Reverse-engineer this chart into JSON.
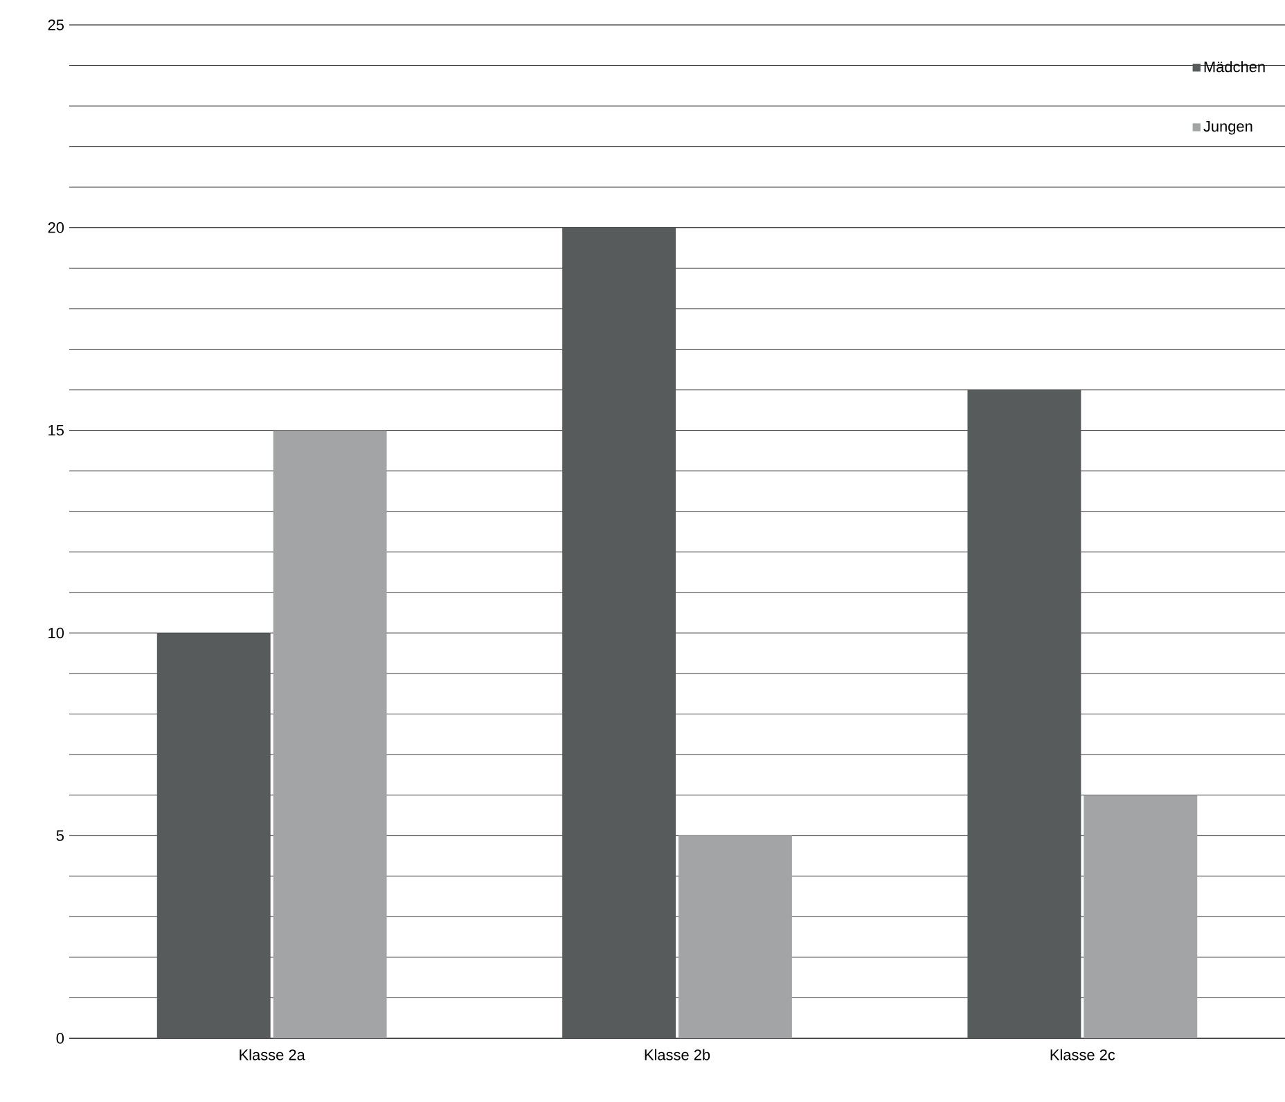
{
  "chart_data": {
    "type": "bar",
    "categories": [
      "Klasse 2a",
      "Klasse 2b",
      "Klasse 2c"
    ],
    "series": [
      {
        "name": "Mädchen",
        "color": "#585b5c",
        "values": [
          10,
          20,
          16
        ]
      },
      {
        "name": "Jungen",
        "color": "#a2a4a5",
        "values": [
          15,
          5,
          6
        ]
      }
    ],
    "ylim": [
      0,
      25
    ],
    "yticks": [
      0,
      5,
      10,
      15,
      20,
      25
    ],
    "grid": "y",
    "legend": "top right"
  }
}
